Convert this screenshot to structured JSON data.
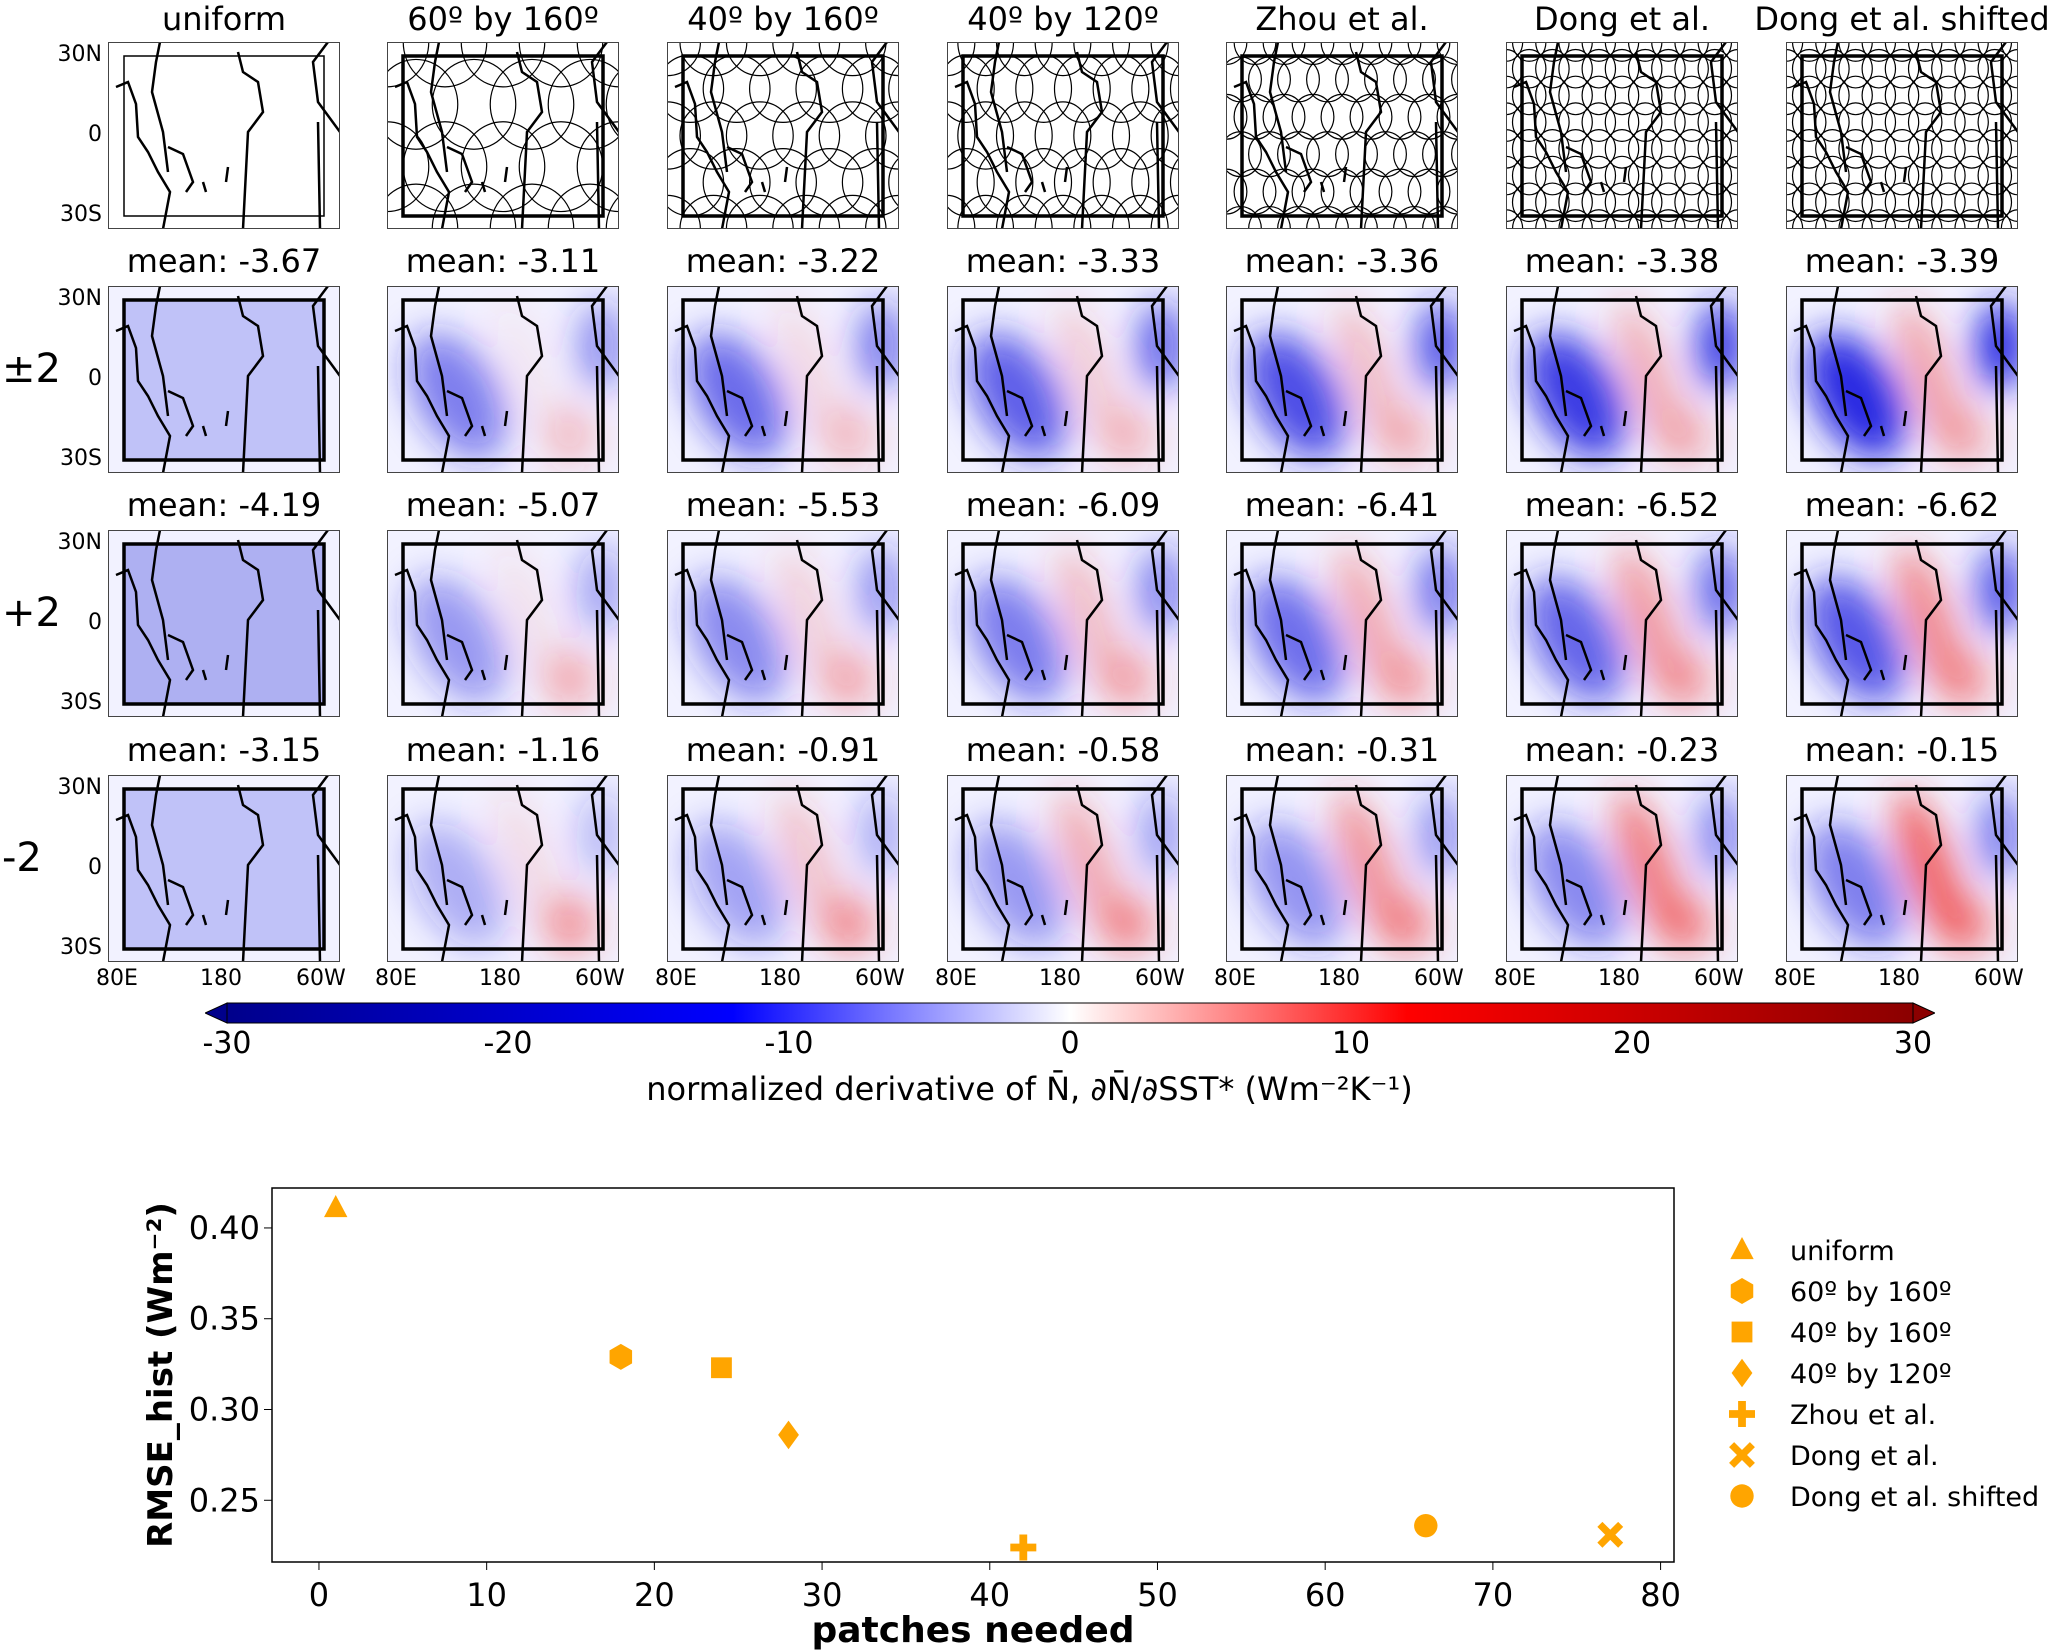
{
  "columns": [
    "uniform",
    "60º by 160º",
    "40º by 160º",
    "40º by 120º",
    "Zhou et al.",
    "Dong et al.",
    "Dong et al. shifted"
  ],
  "rows": [
    {
      "label": "±2",
      "means": [
        "mean: -3.67",
        "mean: -3.11",
        "mean: -3.22",
        "mean: -3.33",
        "mean: -3.36",
        "mean: -3.38",
        "mean: -3.39"
      ]
    },
    {
      "label": "+2",
      "means": [
        "mean: -4.19",
        "mean: -5.07",
        "mean: -5.53",
        "mean: -6.09",
        "mean: -6.41",
        "mean: -6.52",
        "mean: -6.62"
      ]
    },
    {
      "label": "-2",
      "means": [
        "mean: -3.15",
        "mean: -1.16",
        "mean: -0.91",
        "mean: -0.58",
        "mean: -0.31",
        "mean: -0.23",
        "mean: -0.15"
      ]
    }
  ],
  "lat_ticks": [
    "30N",
    "0",
    "30S"
  ],
  "lon_ticks": [
    "80E",
    "180",
    "60W"
  ],
  "colorbar": {
    "ticks": [
      "-30",
      "-20",
      "-10",
      "0",
      "10",
      "20",
      "30"
    ],
    "range": [
      -30,
      30
    ],
    "colormap": "bwr",
    "label": "normalized derivative of N̄, ∂N̄/∂SST* (Wm⁻²K⁻¹)",
    "colors": {
      "min": "#00008b",
      "neg": "#0000ff",
      "zero": "#ffffff",
      "pos": "#ff0000",
      "max": "#8b0000"
    }
  },
  "chart_data": {
    "type": "scatter",
    "xlabel": "patches needed",
    "ylabel": "RMSE_hist (Wm⁻²)",
    "xlim": [
      -2.8,
      80.8
    ],
    "ylim": [
      0.216,
      0.422
    ],
    "xticks": [
      "0",
      "10",
      "20",
      "30",
      "40",
      "50",
      "60",
      "70",
      "80"
    ],
    "yticks": [
      "0.25",
      "0.30",
      "0.35",
      "0.40"
    ],
    "grid": false,
    "legend_placement": "right-outside",
    "marker_color": "#ffa500",
    "series": [
      {
        "name": "uniform",
        "marker": "triangle",
        "x": 1,
        "y": 0.411
      },
      {
        "name": "60º by 160º",
        "marker": "hexagon",
        "x": 18,
        "y": 0.329
      },
      {
        "name": "40º by 160º",
        "marker": "square",
        "x": 24,
        "y": 0.323
      },
      {
        "name": "40º by 120º",
        "marker": "diamond",
        "x": 28,
        "y": 0.286
      },
      {
        "name": "Zhou et al.",
        "marker": "plus",
        "x": 42,
        "y": 0.224
      },
      {
        "name": "Dong et al.",
        "marker": "x",
        "x": 77,
        "y": 0.231
      },
      {
        "name": "Dong et al. shifted",
        "marker": "circle",
        "x": 66,
        "y": 0.236
      }
    ]
  }
}
